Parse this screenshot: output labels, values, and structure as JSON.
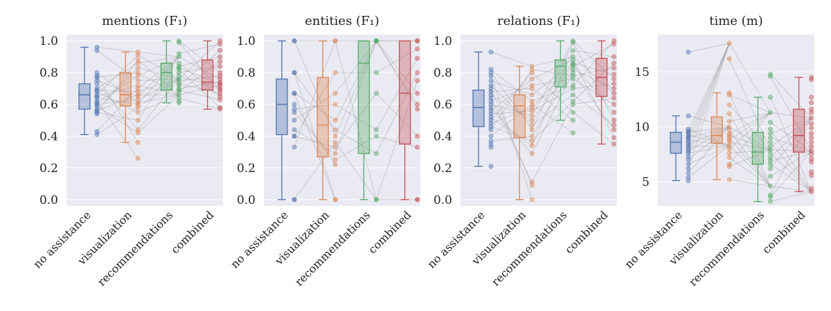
{
  "chart_data": [
    {
      "type": "box",
      "title": "mentions (F₁)",
      "categories": [
        "no assistance",
        "visualization",
        "recommendations",
        "combined"
      ],
      "colors": [
        "#4c72b0",
        "#dd8452",
        "#55a868",
        "#c44e52"
      ],
      "ylim": [
        -0.04,
        1.04
      ],
      "yticks": [
        "0.0",
        "0.2",
        "0.4",
        "0.6",
        "0.8",
        "1.0"
      ],
      "ytick_values": [
        0,
        0.2,
        0.4,
        0.6,
        0.8,
        1.0
      ],
      "grid": true,
      "boxes": [
        {
          "whislo": 0.41,
          "q1": 0.57,
          "med": 0.66,
          "q3": 0.73,
          "whishi": 0.96
        },
        {
          "whislo": 0.36,
          "q1": 0.59,
          "med": 0.66,
          "q3": 0.8,
          "whishi": 0.93
        },
        {
          "whislo": 0.61,
          "q1": 0.69,
          "med": 0.8,
          "q3": 0.86,
          "whishi": 1.0
        },
        {
          "whislo": 0.57,
          "q1": 0.69,
          "med": 0.74,
          "q3": 0.88,
          "whishi": 1.0
        }
      ],
      "points": [
        [
          0.96,
          0.94,
          0.8,
          0.78,
          0.77,
          0.75,
          0.73,
          0.7,
          0.69,
          0.68,
          0.66,
          0.65,
          0.64,
          0.62,
          0.61,
          0.6,
          0.59,
          0.57,
          0.56,
          0.55,
          0.54,
          0.43,
          0.41
        ],
        [
          0.93,
          0.91,
          0.88,
          0.86,
          0.83,
          0.8,
          0.78,
          0.75,
          0.72,
          0.7,
          0.68,
          0.66,
          0.65,
          0.63,
          0.61,
          0.6,
          0.58,
          0.55,
          0.5,
          0.44,
          0.42,
          0.36,
          0.26
        ],
        [
          1.0,
          0.99,
          0.92,
          0.9,
          0.86,
          0.84,
          0.83,
          0.82,
          0.8,
          0.78,
          0.76,
          0.75,
          0.73,
          0.72,
          0.7,
          0.69,
          0.68,
          0.66,
          0.64,
          0.62,
          0.61
        ],
        [
          1.0,
          0.98,
          0.94,
          0.9,
          0.87,
          0.84,
          0.8,
          0.78,
          0.76,
          0.74,
          0.73,
          0.72,
          0.7,
          0.69,
          0.67,
          0.65,
          0.63,
          0.58,
          0.57
        ]
      ]
    },
    {
      "type": "box",
      "title": "entities (F₁)",
      "categories": [
        "no assistance",
        "visualization",
        "recommendations",
        "combined"
      ],
      "colors": [
        "#4c72b0",
        "#dd8452",
        "#55a868",
        "#c44e52"
      ],
      "ylim": [
        -0.04,
        1.04
      ],
      "yticks": [
        "0.0",
        "0.2",
        "0.4",
        "0.6",
        "0.8",
        "1.0"
      ],
      "ytick_values": [
        0,
        0.2,
        0.4,
        0.6,
        0.8,
        1.0
      ],
      "grid": true,
      "boxes": [
        {
          "whislo": 0.0,
          "q1": 0.41,
          "med": 0.6,
          "q3": 0.76,
          "whishi": 1.0
        },
        {
          "whislo": 0.0,
          "q1": 0.27,
          "med": 0.47,
          "q3": 0.77,
          "whishi": 1.0
        },
        {
          "whislo": 0.0,
          "q1": 0.29,
          "med": 0.86,
          "q3": 1.0,
          "whishi": 1.0
        },
        {
          "whislo": 0.0,
          "q1": 0.35,
          "med": 0.67,
          "q3": 1.0,
          "whishi": 1.0
        }
      ],
      "points": [
        [
          1.0,
          1.0,
          0.8,
          0.8,
          0.67,
          0.67,
          0.6,
          0.57,
          0.55,
          0.5,
          0.44,
          0.4,
          0.4,
          0.33,
          0.0,
          0.0
        ],
        [
          1.0,
          1.0,
          0.8,
          0.67,
          0.6,
          0.5,
          0.44,
          0.4,
          0.36,
          0.33,
          0.29,
          0.25,
          0.22,
          0.0,
          0.0
        ],
        [
          1.0,
          1.0,
          1.0,
          1.0,
          1.0,
          0.8,
          0.67,
          0.44,
          0.4,
          0.29,
          0.0,
          0.0
        ],
        [
          1.0,
          1.0,
          0.95,
          0.89,
          0.8,
          0.75,
          0.67,
          0.6,
          0.57,
          0.4,
          0.33,
          0.0,
          0.0
        ]
      ]
    },
    {
      "type": "box",
      "title": "relations (F₁)",
      "categories": [
        "no assistance",
        "visualization",
        "recommendations",
        "combined"
      ],
      "colors": [
        "#4c72b0",
        "#dd8452",
        "#55a868",
        "#c44e52"
      ],
      "ylim": [
        -0.04,
        1.04
      ],
      "yticks": [
        "0.0",
        "0.2",
        "0.4",
        "0.6",
        "0.8",
        "1.0"
      ],
      "ytick_values": [
        0,
        0.2,
        0.4,
        0.6,
        0.8,
        1.0
      ],
      "grid": true,
      "boxes": [
        {
          "whislo": 0.21,
          "q1": 0.46,
          "med": 0.58,
          "q3": 0.69,
          "whishi": 0.93
        },
        {
          "whislo": 0.0,
          "q1": 0.39,
          "med": 0.59,
          "q3": 0.66,
          "whishi": 0.84
        },
        {
          "whislo": 0.5,
          "q1": 0.71,
          "med": 0.84,
          "q3": 0.88,
          "whishi": 1.0
        },
        {
          "whislo": 0.35,
          "q1": 0.65,
          "med": 0.77,
          "q3": 0.89,
          "whishi": 1.0
        }
      ],
      "points": [
        [
          0.93,
          0.82,
          0.8,
          0.78,
          0.75,
          0.72,
          0.7,
          0.68,
          0.66,
          0.64,
          0.62,
          0.6,
          0.58,
          0.56,
          0.54,
          0.52,
          0.5,
          0.48,
          0.46,
          0.44,
          0.4,
          0.37,
          0.35,
          0.33,
          0.21
        ],
        [
          0.84,
          0.82,
          0.8,
          0.76,
          0.72,
          0.7,
          0.66,
          0.62,
          0.6,
          0.58,
          0.56,
          0.53,
          0.5,
          0.47,
          0.44,
          0.4,
          0.37,
          0.34,
          0.29,
          0.11,
          0.09,
          0.0
        ],
        [
          1.0,
          0.99,
          0.94,
          0.9,
          0.88,
          0.86,
          0.85,
          0.84,
          0.82,
          0.8,
          0.78,
          0.76,
          0.72,
          0.7,
          0.66,
          0.62,
          0.6,
          0.55,
          0.5,
          0.42
        ],
        [
          1.0,
          0.98,
          0.9,
          0.86,
          0.83,
          0.79,
          0.76,
          0.73,
          0.7,
          0.67,
          0.64,
          0.6,
          0.55,
          0.5,
          0.47,
          0.44,
          0.39,
          0.35
        ]
      ]
    },
    {
      "type": "box",
      "title": "time (m)",
      "categories": [
        "no assistance",
        "visualization",
        "recommendations",
        "combined"
      ],
      "colors": [
        "#4c72b0",
        "#dd8452",
        "#55a868",
        "#c44e52"
      ],
      "ylim": [
        2.8,
        18.4
      ],
      "yticks": [
        "5",
        "10",
        "15"
      ],
      "ytick_values": [
        5,
        10,
        15
      ],
      "grid": true,
      "boxes": [
        {
          "whislo": 5.1,
          "q1": 7.6,
          "med": 8.6,
          "q3": 9.5,
          "whishi": 11.0
        },
        {
          "whislo": 5.2,
          "q1": 8.5,
          "med": 9.2,
          "q3": 10.9,
          "whishi": 13.1
        },
        {
          "whislo": 3.2,
          "q1": 6.6,
          "med": 7.7,
          "q3": 9.5,
          "whishi": 12.7
        },
        {
          "whislo": 4.1,
          "q1": 7.7,
          "med": 9.2,
          "q3": 11.6,
          "whishi": 14.5
        }
      ],
      "points": [
        [
          16.8,
          11.0,
          9.8,
          9.6,
          9.5,
          9.3,
          9.1,
          9.0,
          8.8,
          8.6,
          8.4,
          8.2,
          8.0,
          7.8,
          7.6,
          7.3,
          7.0,
          6.6,
          6.2,
          5.8,
          5.4,
          5.1
        ],
        [
          17.6,
          16.2,
          13.1,
          12.9,
          12.0,
          11.2,
          10.5,
          10.0,
          9.7,
          9.4,
          9.2,
          9.0,
          8.8,
          8.6,
          8.3,
          8.0,
          7.6,
          7.2,
          6.6,
          6.4,
          5.2
        ],
        [
          14.8,
          14.6,
          12.7,
          11.3,
          10.4,
          9.8,
          9.4,
          9.0,
          8.6,
          8.2,
          7.9,
          7.6,
          7.2,
          6.9,
          6.6,
          6.2,
          5.5,
          4.6,
          3.8,
          3.6,
          3.2
        ],
        [
          14.5,
          14.3,
          12.7,
          12.2,
          11.6,
          11.3,
          10.8,
          10.3,
          9.9,
          9.4,
          9.0,
          8.6,
          8.2,
          7.8,
          7.5,
          7.1,
          6.8,
          5.9,
          5.6,
          4.4,
          4.1
        ]
      ]
    }
  ]
}
